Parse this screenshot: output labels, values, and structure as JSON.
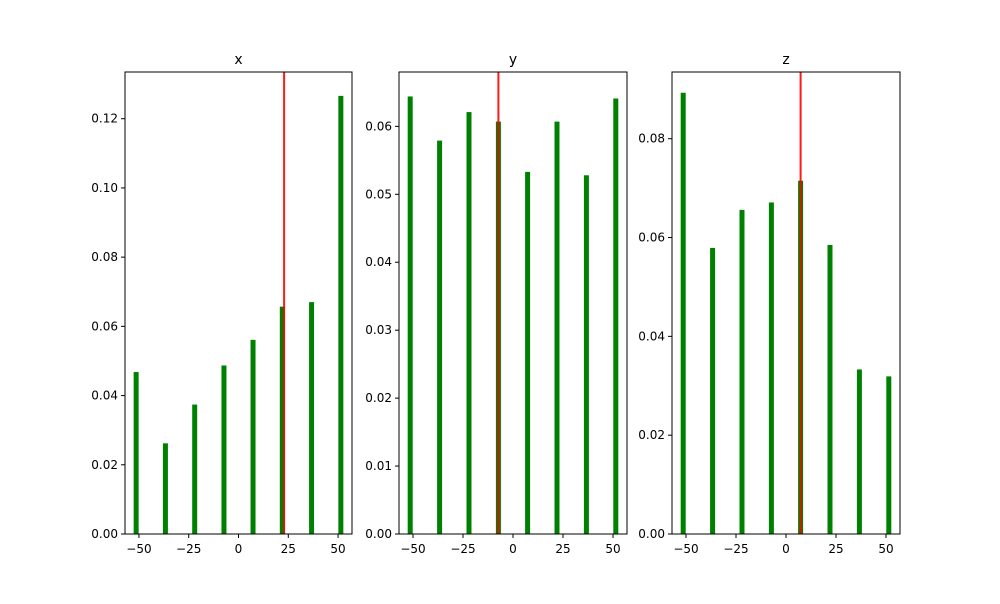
{
  "chart_data": [
    {
      "type": "bar",
      "title": "x",
      "xlabel": "",
      "ylabel": "",
      "categories": [
        -51.4,
        -36.7,
        -22.0,
        -7.3,
        7.3,
        22.0,
        36.7,
        51.4
      ],
      "values": [
        0.0468,
        0.0262,
        0.0374,
        0.0487,
        0.0561,
        0.0657,
        0.067,
        0.1266
      ],
      "marker_x": 22.9,
      "xlim": [
        -57,
        57
      ],
      "ylim": [
        0,
        0.1335
      ],
      "xticks": [
        -50,
        -25,
        0,
        25,
        50
      ],
      "yticks": [
        0.0,
        0.02,
        0.04,
        0.06,
        0.08,
        0.1,
        0.12
      ],
      "xtick_labels": [
        "−50",
        "−25",
        "0",
        "25",
        "50"
      ],
      "ytick_labels": [
        "0.00",
        "0.02",
        "0.04",
        "0.06",
        "0.08",
        "0.10",
        "0.12"
      ],
      "bar_color": "#008000",
      "marker_color": "#ff0000"
    },
    {
      "type": "bar",
      "title": "y",
      "xlabel": "",
      "ylabel": "",
      "categories": [
        -51.4,
        -36.7,
        -22.0,
        -7.3,
        7.3,
        22.0,
        36.7,
        51.4
      ],
      "values": [
        0.0644,
        0.0579,
        0.0621,
        0.0607,
        0.0533,
        0.0607,
        0.0528,
        0.0641
      ],
      "marker_x": -7.3,
      "xlim": [
        -57,
        57
      ],
      "ylim": [
        0,
        0.068
      ],
      "xticks": [
        -50,
        -25,
        0,
        25,
        50
      ],
      "yticks": [
        0.0,
        0.01,
        0.02,
        0.03,
        0.04,
        0.05,
        0.06
      ],
      "xtick_labels": [
        "−50",
        "−25",
        "0",
        "25",
        "50"
      ],
      "ytick_labels": [
        "0.00",
        "0.01",
        "0.02",
        "0.03",
        "0.04",
        "0.05",
        "0.06"
      ],
      "bar_color": "#008000",
      "marker_color": "#ff0000"
    },
    {
      "type": "bar",
      "title": "z",
      "xlabel": "",
      "ylabel": "",
      "categories": [
        -51.4,
        -36.7,
        -22.0,
        -7.3,
        7.3,
        22.0,
        36.7,
        51.4
      ],
      "values": [
        0.0893,
        0.0579,
        0.0656,
        0.0671,
        0.0715,
        0.0585,
        0.0333,
        0.0319
      ],
      "marker_x": 7.3,
      "xlim": [
        -57,
        57
      ],
      "ylim": [
        0,
        0.0935
      ],
      "xticks": [
        -50,
        -25,
        0,
        25,
        50
      ],
      "yticks": [
        0.0,
        0.02,
        0.04,
        0.06,
        0.08
      ],
      "xtick_labels": [
        "−50",
        "−25",
        "0",
        "25",
        "50"
      ],
      "ytick_labels": [
        "0.00",
        "0.02",
        "0.04",
        "0.06",
        "0.08"
      ],
      "bar_color": "#008000",
      "marker_color": "#ff0000"
    }
  ]
}
